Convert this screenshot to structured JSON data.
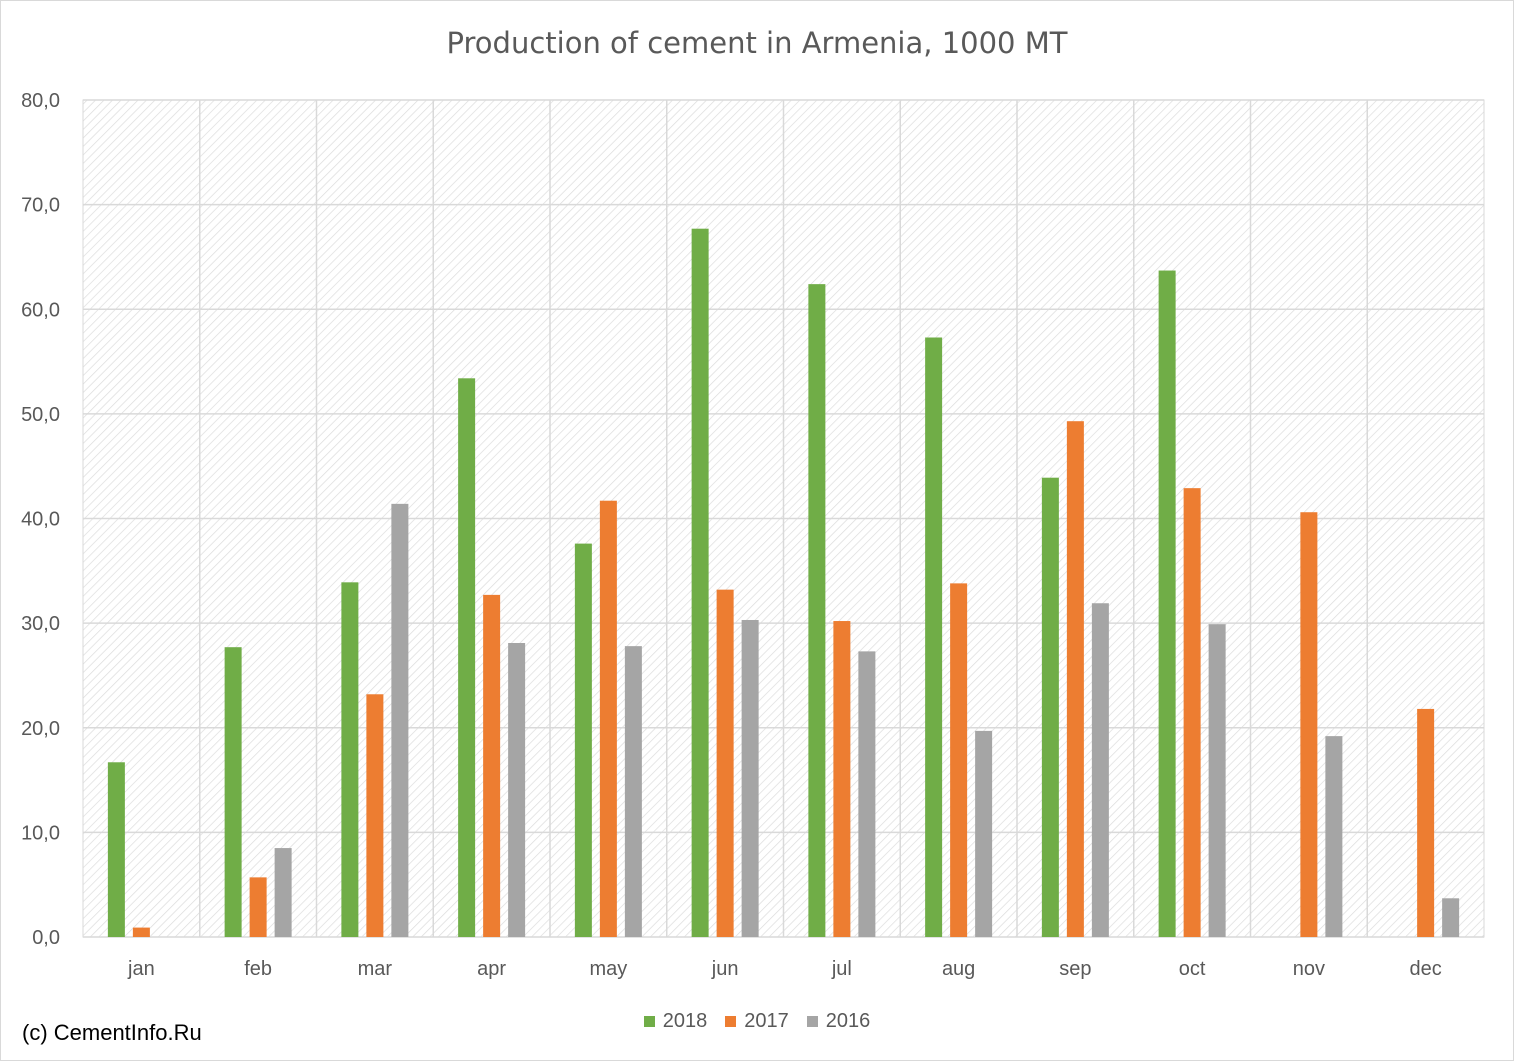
{
  "chart_data": {
    "type": "bar",
    "title": "Production of cement in Armenia, 1000 MT",
    "categories": [
      "jan",
      "feb",
      "mar",
      "apr",
      "may",
      "jun",
      "jul",
      "aug",
      "sep",
      "oct",
      "nov",
      "dec"
    ],
    "series": [
      {
        "name": "2018",
        "color": "#70ad47",
        "values": [
          16.7,
          27.7,
          33.9,
          53.4,
          37.6,
          67.7,
          62.4,
          57.3,
          43.9,
          63.7,
          null,
          null
        ]
      },
      {
        "name": "2017",
        "color": "#ed7d31",
        "values": [
          0.9,
          5.7,
          23.2,
          32.7,
          41.7,
          33.2,
          30.2,
          33.8,
          49.3,
          42.9,
          40.6,
          21.8
        ]
      },
      {
        "name": "2016",
        "color": "#a5a5a5",
        "values": [
          null,
          8.5,
          41.4,
          28.1,
          27.8,
          30.3,
          27.3,
          19.7,
          31.9,
          29.9,
          19.2,
          3.7
        ]
      }
    ],
    "yticks": [
      "0,0",
      "10,0",
      "20,0",
      "30,0",
      "40,0",
      "50,0",
      "60,0",
      "70,0",
      "80,0"
    ],
    "ylim": [
      0,
      80
    ],
    "xlabel": "",
    "ylabel": "",
    "grid": true,
    "legend_position": "bottom"
  },
  "footer": {
    "copyright": "(c) CementInfo.Ru"
  }
}
